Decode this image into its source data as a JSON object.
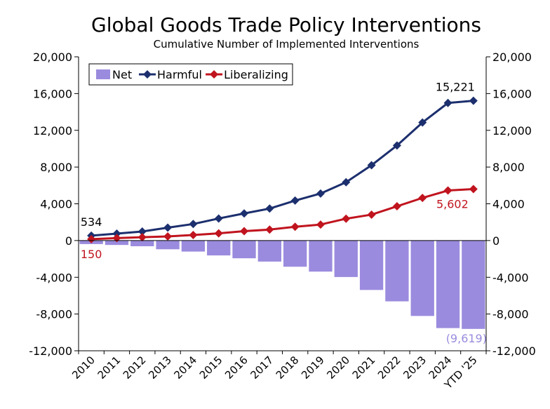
{
  "chart_data": {
    "type": "bar",
    "title": "Global Goods Trade Policy Interventions",
    "subtitle": "Cumulative Number of Implemented Interventions",
    "categories": [
      "2010",
      "2011",
      "2012",
      "2013",
      "2014",
      "2015",
      "2016",
      "2017",
      "2018",
      "2019",
      "2020",
      "2021",
      "2022",
      "2023",
      "2024",
      "YTD '25"
    ],
    "ylim": [
      -12000,
      20000
    ],
    "y_ticks": [
      "-12,000",
      "-8,000",
      "-4,000",
      "0",
      "4,000",
      "8,000",
      "12,000",
      "16,000",
      "20,000"
    ],
    "y_tick_values": [
      -12000,
      -8000,
      -4000,
      0,
      4000,
      8000,
      12000,
      16000,
      20000
    ],
    "grid": false,
    "secondary_y_axis": true,
    "legend_placement": "top-left",
    "series": [
      {
        "name": "Net",
        "kind": "bar",
        "color": "#9b8bde",
        "values": [
          -384,
          -480,
          -620,
          -950,
          -1200,
          -1620,
          -1930,
          -2290,
          -2850,
          -3380,
          -3970,
          -5380,
          -6620,
          -8210,
          -9530,
          -9619
        ]
      },
      {
        "name": "Harmful",
        "kind": "line",
        "marker": "diamond",
        "color": "#1c2f6e",
        "values": [
          534,
          750,
          980,
          1400,
          1800,
          2400,
          2950,
          3480,
          4350,
          5120,
          6350,
          8200,
          10350,
          12850,
          14980,
          15221
        ]
      },
      {
        "name": "Liberalizing",
        "kind": "line",
        "marker": "diamond",
        "color": "#c0141e",
        "values": [
          150,
          270,
          360,
          450,
          600,
          780,
          1020,
          1190,
          1500,
          1740,
          2380,
          2820,
          3730,
          4640,
          5450,
          5602
        ]
      }
    ],
    "annotations": [
      {
        "text": "534",
        "series": "Harmful",
        "index": 0,
        "color": "#000000"
      },
      {
        "text": "150",
        "series": "Liberalizing",
        "index": 0,
        "color": "#c0141e"
      },
      {
        "text": "15,221",
        "series": "Harmful",
        "index": 15,
        "color": "#000000"
      },
      {
        "text": "5,602",
        "series": "Liberalizing",
        "index": 15,
        "color": "#c0141e"
      },
      {
        "text": "(9,619)",
        "series": "Net",
        "index": 15,
        "color": "#9b8bde"
      }
    ]
  }
}
